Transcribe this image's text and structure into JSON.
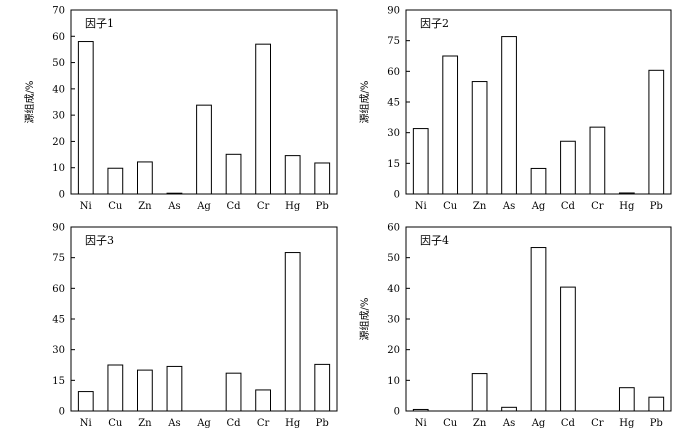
{
  "chart_data": [
    {
      "type": "bar",
      "panel_label": "因子1",
      "ylabel": "源组成/%",
      "xlabel": "",
      "categories": [
        "Ni",
        "Cu",
        "Zn",
        "As",
        "Ag",
        "Cd",
        "Cr",
        "Hg",
        "Pb"
      ],
      "values": [
        58,
        9.8,
        12.2,
        0.3,
        33.8,
        15.1,
        57,
        14.6,
        11.8
      ],
      "ylim": [
        0,
        70
      ],
      "yticks": [
        0,
        10,
        20,
        30,
        40,
        50,
        60,
        70
      ],
      "grid": false,
      "legend": "none"
    },
    {
      "type": "bar",
      "panel_label": "因子2",
      "ylabel": "源组成/%",
      "xlabel": "",
      "categories": [
        "Ni",
        "Cu",
        "Zn",
        "As",
        "Ag",
        "Cd",
        "Cr",
        "Hg",
        "Pb"
      ],
      "values": [
        32,
        67.5,
        55,
        77,
        12.5,
        25.8,
        32.7,
        0.5,
        60.5
      ],
      "ylim": [
        0,
        90
      ],
      "yticks": [
        0,
        15,
        30,
        45,
        60,
        75,
        90
      ],
      "grid": false,
      "legend": "none"
    },
    {
      "type": "bar",
      "panel_label": "因子3",
      "ylabel": "",
      "xlabel": "",
      "categories": [
        "Ni",
        "Cu",
        "Zn",
        "As",
        "Ag",
        "Cd",
        "Cr",
        "Hg",
        "Pb"
      ],
      "values": [
        9.5,
        22.5,
        20,
        21.8,
        0,
        18.5,
        10.3,
        77.5,
        22.8
      ],
      "ylim": [
        0,
        90
      ],
      "yticks": [
        0,
        15,
        30,
        45,
        60,
        75,
        90
      ],
      "grid": false,
      "legend": "none"
    },
    {
      "type": "bar",
      "panel_label": "因子4",
      "ylabel": "源组成/%",
      "xlabel": "",
      "categories": [
        "Ni",
        "Cu",
        "Zn",
        "As",
        "Ag",
        "Cd",
        "Cr",
        "Hg",
        "Pb"
      ],
      "values": [
        0.5,
        0,
        12.2,
        1.2,
        53.3,
        40.4,
        0,
        7.6,
        4.5
      ],
      "ylim": [
        0,
        60
      ],
      "yticks": [
        0,
        10,
        20,
        30,
        40,
        50,
        60
      ],
      "grid": false,
      "legend": "none"
    }
  ]
}
